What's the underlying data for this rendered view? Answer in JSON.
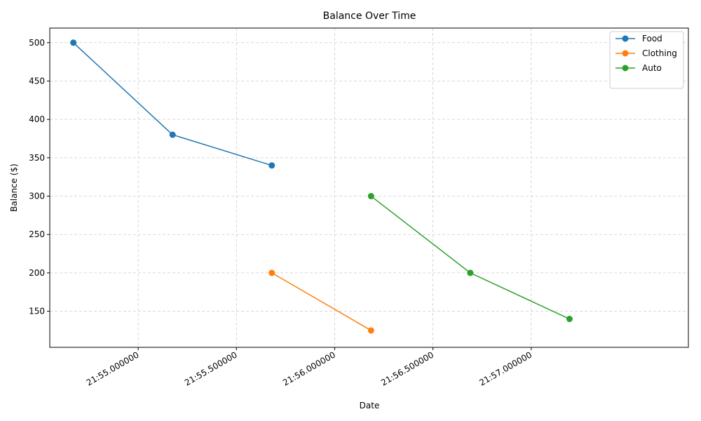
{
  "chart_data": {
    "type": "line",
    "title": "Balance Over Time",
    "xlabel": "Date",
    "ylabel": "Balance ($)",
    "x_unit": "seconds past 21:55:00",
    "xlim": [
      -0.45,
      2.8
    ],
    "ylim": [
      103,
      519
    ],
    "x_ticks": [
      {
        "value": 0.0,
        "label": "21:55.000000"
      },
      {
        "value": 0.5,
        "label": "21:55.500000"
      },
      {
        "value": 1.0,
        "label": "21:56.000000"
      },
      {
        "value": 1.5,
        "label": "21:56.500000"
      },
      {
        "value": 2.0,
        "label": "21:57.000000"
      }
    ],
    "y_ticks": [
      150,
      200,
      250,
      300,
      350,
      400,
      450,
      500
    ],
    "grid": true,
    "legend_position": "top-right",
    "series": [
      {
        "name": "Food",
        "color": "#1f77b4",
        "x": [
          -0.33,
          0.175,
          0.68
        ],
        "y": [
          500,
          380,
          340
        ]
      },
      {
        "name": "Clothing",
        "color": "#ff7f0e",
        "x": [
          0.68,
          1.185
        ],
        "y": [
          200,
          125
        ]
      },
      {
        "name": "Auto",
        "color": "#2ca02c",
        "x": [
          1.185,
          1.69,
          2.195
        ],
        "y": [
          300,
          200,
          140
        ]
      }
    ]
  }
}
